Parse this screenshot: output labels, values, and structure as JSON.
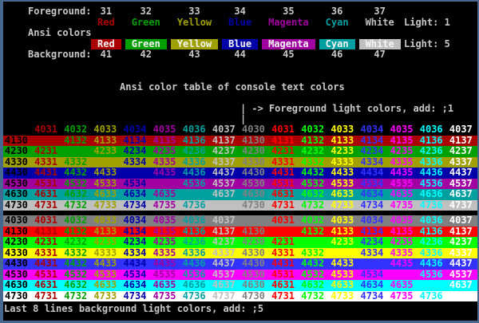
{
  "colors": {
    "frame_border": "#46688F",
    "screen_bg": "#000000",
    "text_default": "#C8C8C8",
    "swatch_text": "#F5F5F5"
  },
  "palette": {
    "normal": [
      "#000000",
      "#AA0000",
      "#00A000",
      "#A0A000",
      "#0000AA",
      "#A000A0",
      "#00A0A0",
      "#C0C0C0"
    ],
    "light": [
      "#808080",
      "#FF0000",
      "#00FF00",
      "#FFFF00",
      "#3333FF",
      "#FF00FF",
      "#00FFFF",
      "#FFFFFF"
    ]
  },
  "header": {
    "foreground_label": "Foreground:",
    "ansi_colors_label": "Ansi colors",
    "background_label": "Background:",
    "light_foreground_label": "Light: 1",
    "light_background_label": "Light: 5",
    "columns": [
      {
        "fg_code": "31",
        "name": "Red",
        "bg_code": "41"
      },
      {
        "fg_code": "32",
        "name": "Green",
        "bg_code": "42"
      },
      {
        "fg_code": "33",
        "name": "Yellow",
        "bg_code": "43"
      },
      {
        "fg_code": "34",
        "name": "Blue",
        "bg_code": "44"
      },
      {
        "fg_code": "35",
        "name": "Magenta",
        "bg_code": "45"
      },
      {
        "fg_code": "36",
        "name": "Cyan",
        "bg_code": "46"
      },
      {
        "fg_code": "37",
        "name": "White",
        "bg_code": "47"
      }
    ]
  },
  "title": "Ansi color table of console text colors",
  "annotation": {
    "bar": "|",
    "text": "-> Foreground light colors, add: ;1"
  },
  "table": {
    "codes": [
      [
        "4030",
        "4031",
        "4032",
        "4033",
        "4034",
        "4035",
        "4036",
        "4037"
      ],
      [
        "4130",
        "4131",
        "4132",
        "4133",
        "4134",
        "4135",
        "4136",
        "4137"
      ],
      [
        "4230",
        "4231",
        "4232",
        "4233",
        "4234",
        "4235",
        "4236",
        "4237"
      ],
      [
        "4330",
        "4331",
        "4332",
        "4333",
        "4334",
        "4335",
        "4336",
        "4337"
      ],
      [
        "4430",
        "4431",
        "4432",
        "4433",
        "4434",
        "4435",
        "4436",
        "4437"
      ],
      [
        "4530",
        "4531",
        "4532",
        "4533",
        "4534",
        "4535",
        "4536",
        "4537"
      ],
      [
        "4630",
        "4631",
        "4632",
        "4633",
        "4634",
        "4635",
        "4636",
        "4637"
      ],
      [
        "4730",
        "4731",
        "4732",
        "4733",
        "4734",
        "4735",
        "4736",
        "4737"
      ]
    ],
    "fg_halves": [
      "normal",
      "light"
    ],
    "sections": [
      {
        "name": "normal-backgrounds",
        "bg_palette": "normal"
      },
      {
        "name": "light-backgrounds",
        "bg_palette": "light"
      }
    ]
  },
  "footer": "Last 8 lines background light colors, add: ;5"
}
